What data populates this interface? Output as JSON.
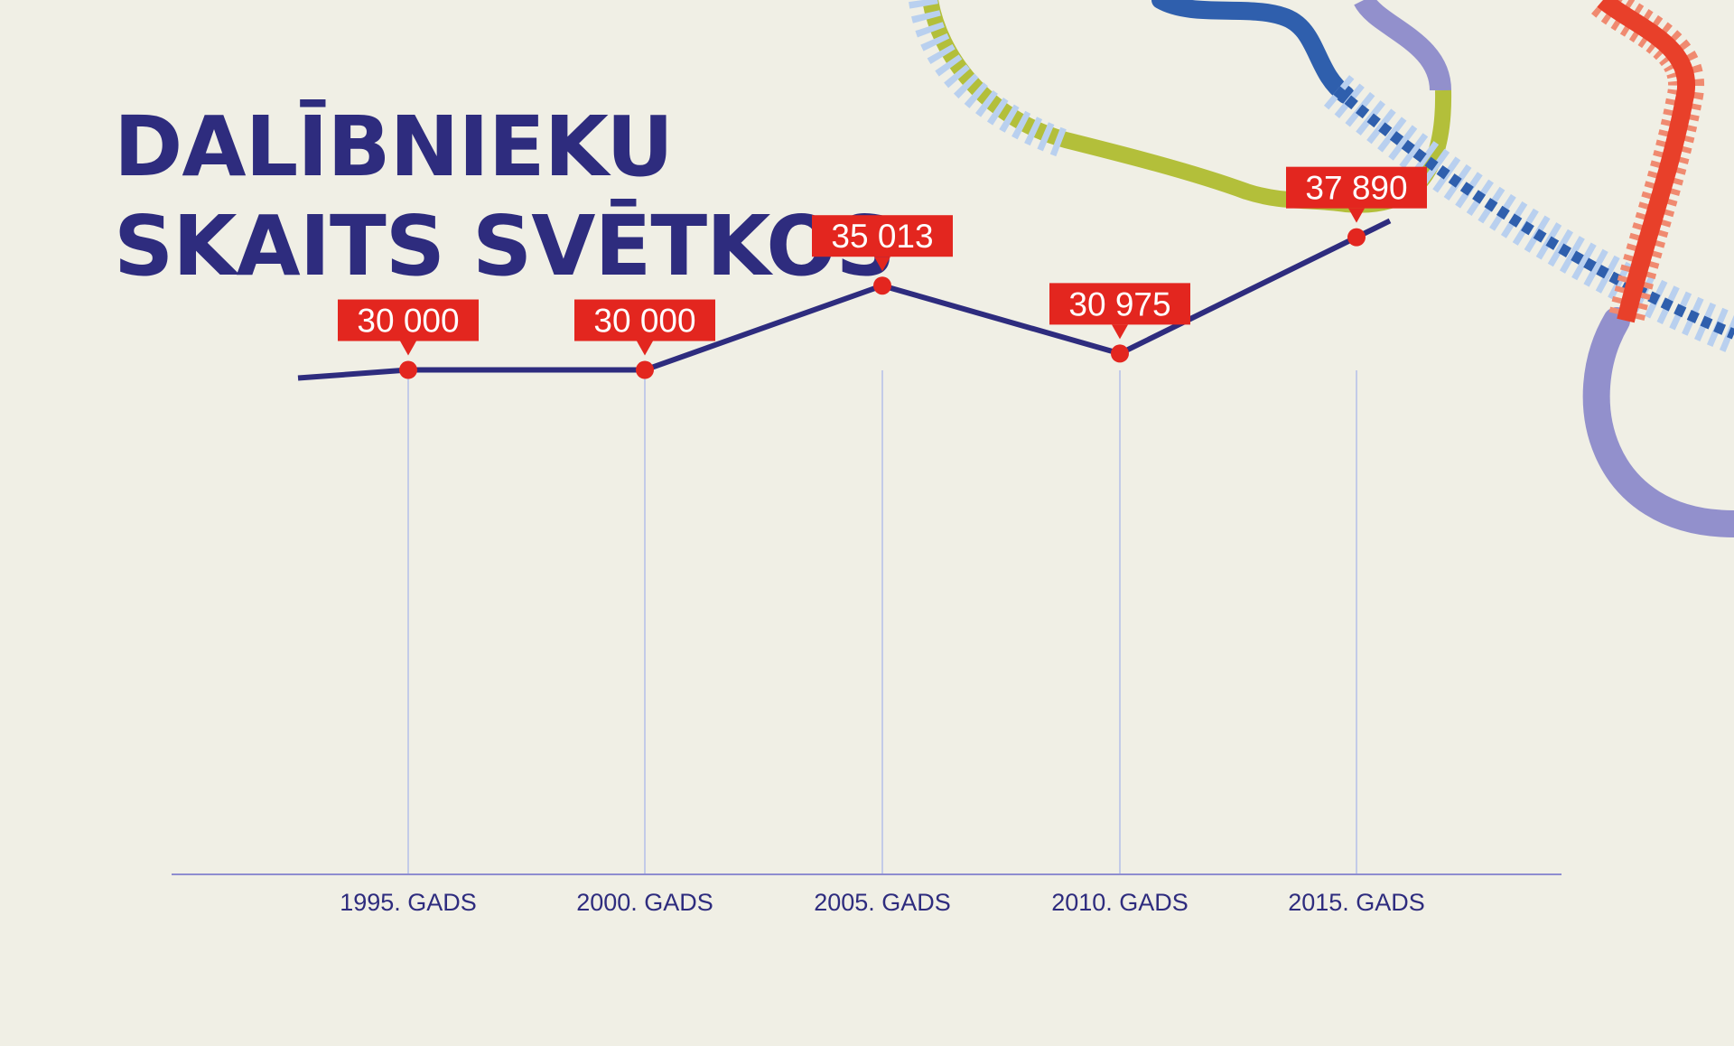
{
  "title": {
    "line1": "DALĪBNIEKU",
    "line2": "SKAITS SVĒTKOS"
  },
  "colors": {
    "background": "#f0efe5",
    "ink": "#2e2c7e",
    "marker": "#e3261f",
    "grid": "#c3cbe8",
    "deco_blue": "#2f5fad",
    "deco_lavender": "#9290cc",
    "deco_green": "#b3bf3a",
    "deco_lightblue": "#b9d0ef",
    "deco_red": "#e8402a",
    "deco_salmon": "#f08a70"
  },
  "chart_data": {
    "type": "line",
    "categories": [
      "1995. GADS",
      "2000. GADS",
      "2005. GADS",
      "2010. GADS",
      "2015. GADS"
    ],
    "values": [
      30000,
      30000,
      35013,
      30975,
      37890
    ],
    "value_labels": [
      "30 000",
      "30 000",
      "35 013",
      "30 975",
      "37 890"
    ],
    "title": "DALĪBNIEKU SKAITS SVĒTKOS",
    "xlabel": "",
    "ylabel": "",
    "ylim": [
      0,
      52000
    ],
    "grid": "vertical",
    "legend": "none"
  }
}
